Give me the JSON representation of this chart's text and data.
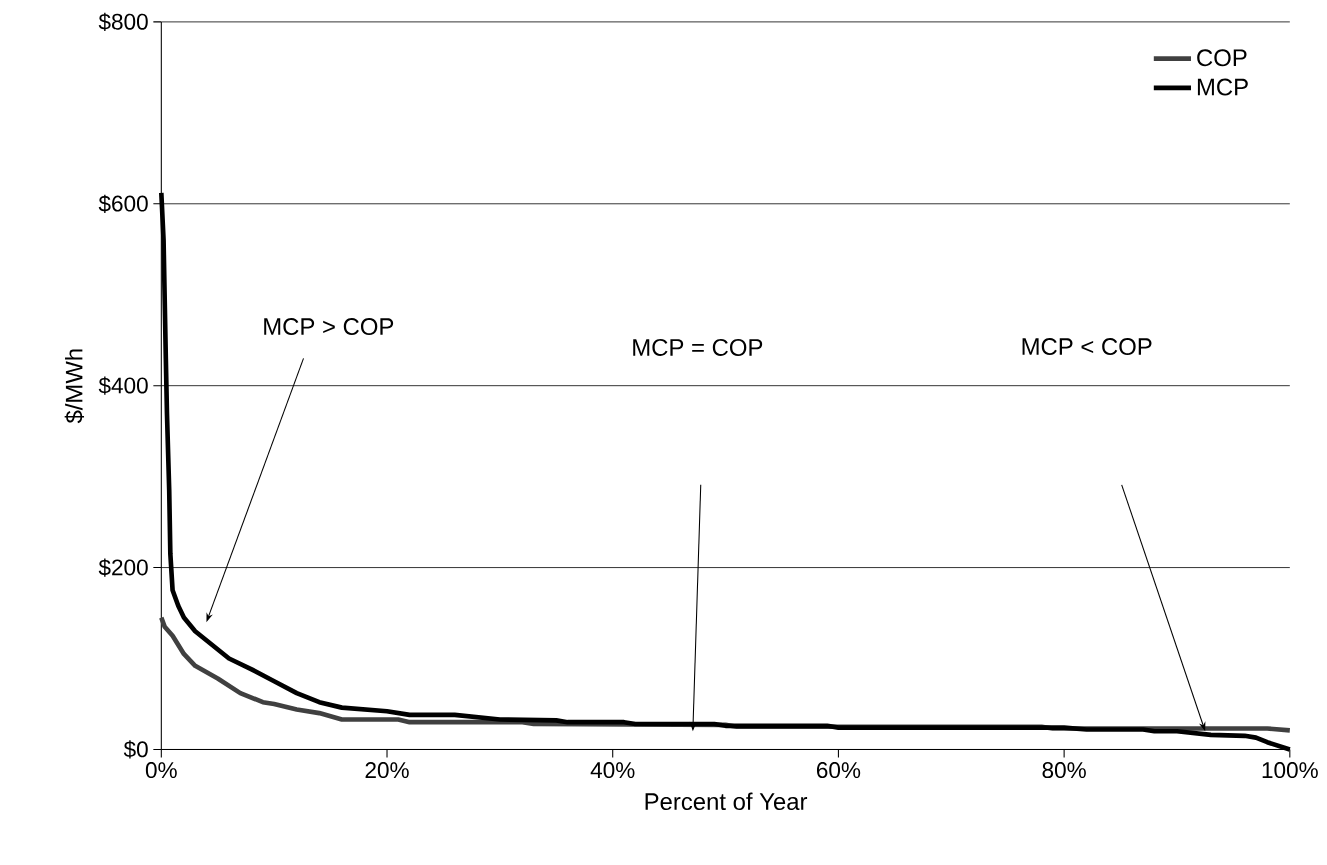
{
  "chart_data": {
    "type": "line",
    "xlabel": "Percent of Year",
    "ylabel": "$/MWh",
    "xlim": [
      0,
      100
    ],
    "ylim": [
      0,
      800
    ],
    "xticks": [
      {
        "value": 0,
        "label": "0%"
      },
      {
        "value": 20,
        "label": "20%"
      },
      {
        "value": 40,
        "label": "40%"
      },
      {
        "value": 60,
        "label": "60%"
      },
      {
        "value": 80,
        "label": "80%"
      },
      {
        "value": 100,
        "label": "100%"
      }
    ],
    "yticks": [
      {
        "value": 0,
        "label": "$0"
      },
      {
        "value": 200,
        "label": "$200"
      },
      {
        "value": 400,
        "label": "$400"
      },
      {
        "value": 600,
        "label": "$600"
      },
      {
        "value": 800,
        "label": "$800"
      }
    ],
    "grid": "y",
    "legend": "top right",
    "marker": "none",
    "line_style": "solid",
    "series": [
      {
        "name": "COP",
        "color": "#404040",
        "x": [
          0,
          0.3,
          1,
          2,
          3,
          4,
          5,
          7,
          9,
          10,
          12,
          14,
          16,
          21,
          22,
          32,
          33,
          50,
          51,
          78,
          79,
          98,
          100
        ],
        "values": [
          145,
          135,
          125,
          105,
          92,
          85,
          78,
          62,
          52,
          50,
          44,
          40,
          33,
          33,
          30,
          30,
          28,
          27,
          25,
          25,
          23,
          23,
          21
        ]
      },
      {
        "name": "MCP",
        "color": "#000000",
        "x": [
          0,
          0.2,
          0.4,
          0.5,
          0.7,
          0.8,
          1,
          1.5,
          2,
          3,
          4,
          5,
          6,
          8,
          10,
          12,
          14,
          16,
          20,
          22,
          26,
          30,
          35,
          36,
          41,
          42,
          49,
          50,
          59,
          60,
          80,
          82,
          87,
          88,
          90,
          93,
          96,
          97,
          98,
          100
        ],
        "values": [
          612,
          560,
          430,
          370,
          285,
          215,
          175,
          158,
          145,
          130,
          120,
          110,
          100,
          88,
          75,
          62,
          52,
          46,
          42,
          38,
          38,
          33,
          32,
          30,
          30,
          28,
          28,
          26,
          26,
          24,
          24,
          22,
          22,
          20,
          20,
          16,
          15,
          13,
          8,
          0
        ]
      }
    ],
    "annotations": [
      "MCP > COP",
      "MCP = COP",
      "MCP < COP"
    ]
  }
}
